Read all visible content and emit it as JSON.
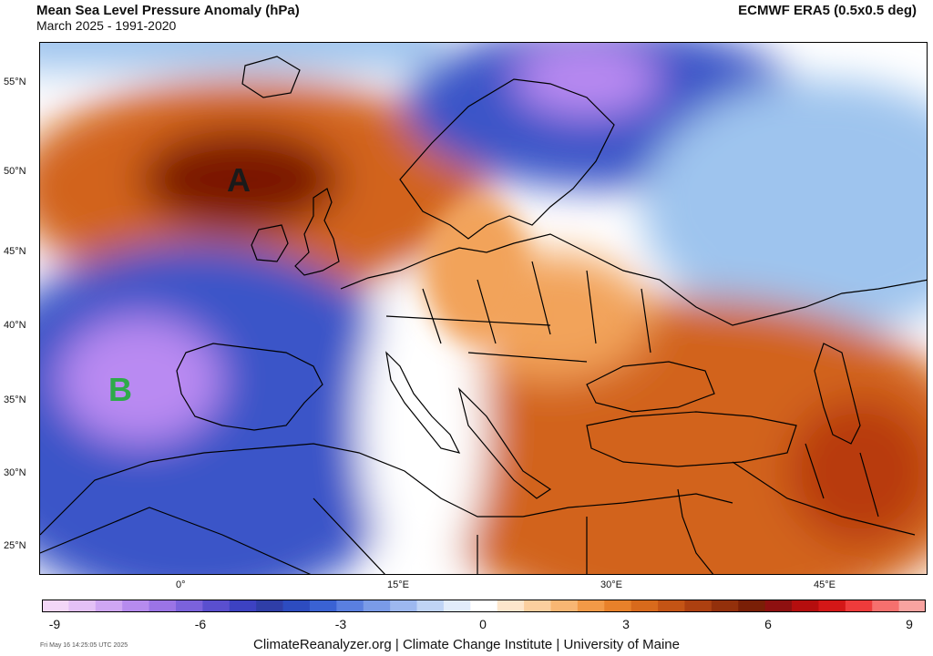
{
  "header": {
    "title": "Mean Sea Level Pressure Anomaly (hPa)",
    "subtitle": "March 2025 - 1991-2020",
    "source": "ECMWF ERA5 (0.5x0.5 deg)"
  },
  "map": {
    "lat_labels": [
      "55°N",
      "50°N",
      "45°N",
      "40°N",
      "35°N",
      "30°N",
      "25°N"
    ],
    "lon_labels": [
      "0°",
      "15°E",
      "30°E",
      "45°E"
    ],
    "markers": [
      {
        "name": "high",
        "label": "A",
        "color": "#1a1a1a"
      },
      {
        "name": "low",
        "label": "B",
        "color": "#2eaa4a"
      }
    ],
    "colors": {
      "high_core": "#7a1600",
      "high": "#d2641a",
      "high_light": "#f2a35a",
      "neutral": "#ffffff",
      "low_light": "#9ec4ee",
      "low": "#3a55c8",
      "low_core": "#b98af2",
      "coast": "#000000"
    }
  },
  "colorbar": {
    "min": -9,
    "max": 9,
    "tick_labels": [
      "-9",
      "-6",
      "-3",
      "0",
      "3",
      "6",
      "9"
    ],
    "colors": [
      "#f3d7f7",
      "#e4c1f6",
      "#cfa6f3",
      "#b68bee",
      "#9b74e6",
      "#7b62dc",
      "#5a4fcf",
      "#3d42c2",
      "#2f3ea8",
      "#2d4cc0",
      "#3a62d3",
      "#5a7fe0",
      "#7a9be8",
      "#9db8ef",
      "#c0d4f5",
      "#e2ecfa",
      "#ffffff",
      "#fde6cc",
      "#fbcf9f",
      "#f8b673",
      "#f29a47",
      "#e8812a",
      "#d86a1c",
      "#c45415",
      "#ad4010",
      "#93300b",
      "#7a1f06",
      "#8e1010",
      "#b50e0e",
      "#d41717",
      "#ee3b3b",
      "#f6706e",
      "#f9a3a0"
    ]
  },
  "footer": {
    "credit": "ClimateReanalyzer.org | Climate Change Institute | University of Maine",
    "timestamp": "Fri May 16 14:25:05 UTC 2025"
  }
}
